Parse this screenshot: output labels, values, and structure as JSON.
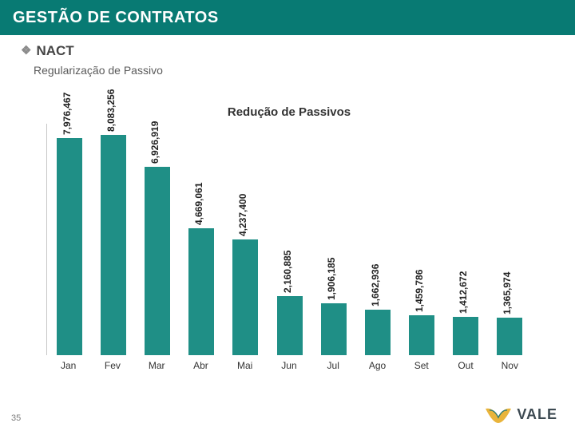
{
  "colors": {
    "band_bg": "#087a73",
    "band_fg": "#ffffff",
    "bar": "#1f8f86",
    "logo_v": "#e9b43b",
    "logo_text": "#3d4a52"
  },
  "header": {
    "title": "GESTÃO DE CONTRATOS"
  },
  "subhead": {
    "bullet": "❖",
    "text": "NACT"
  },
  "subsub": {
    "text": "Regularização de Passivo"
  },
  "page_number": "35",
  "chart": {
    "type": "bar",
    "title": "Redução de Passivos",
    "title_fontsize": 15,
    "label_fontsize": 12,
    "ylim": [
      0,
      8500000
    ],
    "bar_width_pct": 58,
    "categories": [
      "Jan",
      "Fev",
      "Mar",
      "Abr",
      "Mai",
      "Jun",
      "Jul",
      "Ago",
      "Set",
      "Out",
      "Nov"
    ],
    "values": [
      7976467,
      8083256,
      6926919,
      4669061,
      4237400,
      2160885,
      1906185,
      1662936,
      1459786,
      1412672,
      1365974
    ],
    "value_labels": [
      "7,976,467",
      "8,083,256",
      "6,926,919",
      "4,669,061",
      "4,237,400",
      "2,160,885",
      "1,906,185",
      "1,662,936",
      "1,459,786",
      "1,412,672",
      "1,365,974"
    ]
  },
  "logo": {
    "text": "VALE"
  }
}
